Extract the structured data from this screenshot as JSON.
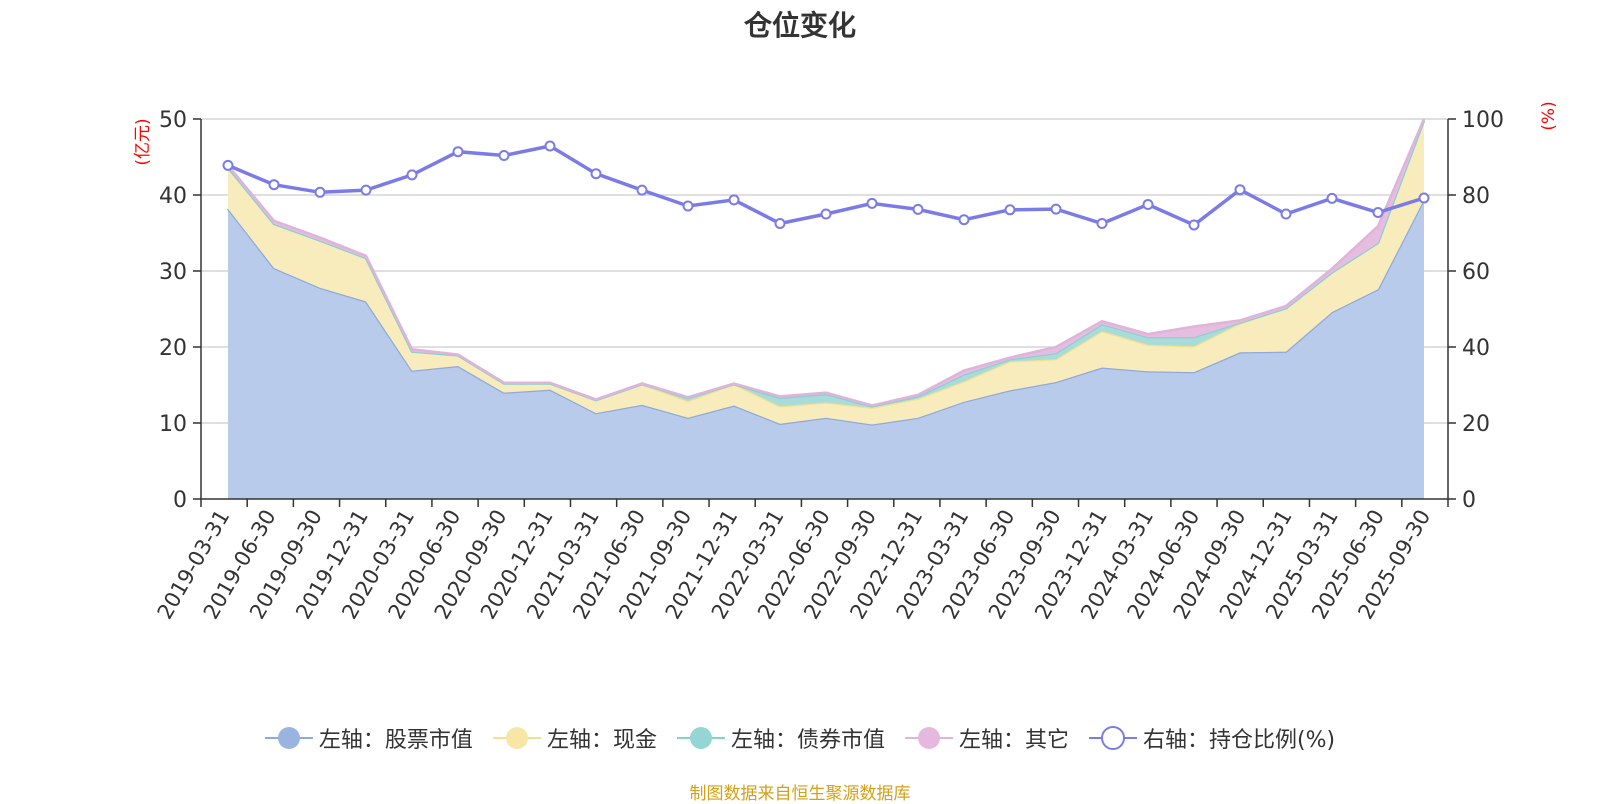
{
  "chart_data": {
    "type": "area",
    "title": "仓位变化",
    "source_note": "制图数据来自恒生聚源数据库",
    "left_axis": {
      "unit": "(亿元)",
      "min": 0,
      "max": 50,
      "ticks": [
        "0",
        "10",
        "20",
        "30",
        "40",
        "50"
      ]
    },
    "right_axis": {
      "unit": "(%)",
      "min": 0,
      "max": 100,
      "ticks": [
        "0",
        "20",
        "40",
        "60",
        "80",
        "100"
      ]
    },
    "x_labels_shown": [
      "2019-03-31",
      "2019-06-30",
      "2019-09-30",
      "2019-12-31",
      "2020-03-31",
      "2020-06-30",
      "2020-09-30",
      "2020-12-31",
      "2021-03-31",
      "2021-06-30",
      "2021-09-30",
      "2021-12-31",
      "2022-03-31",
      "2022-06-30",
      "2022-09-30",
      "2022-12-31",
      "2023-03-31",
      "2023-06-30",
      "2023-09-30",
      "2023-12-31",
      "2024-03-31",
      "2024-06-30",
      "2024-09-30",
      "2024-12-31",
      "2025-03-31",
      "2025-06-30",
      "2025-09-30"
    ],
    "points": 27,
    "series": [
      {
        "name": "左轴：股票市值",
        "axis": "left",
        "type": "area",
        "color": "#8fa9dc",
        "fill": "#b8cbea",
        "values": [
          38.2,
          30.4,
          27.8,
          26.0,
          16.9,
          17.5,
          14.0,
          14.4,
          11.3,
          12.4,
          10.7,
          12.3,
          9.9,
          10.7,
          9.8,
          10.7,
          12.8,
          14.3,
          15.4,
          17.3,
          16.8,
          16.7,
          19.3,
          19.4,
          24.6,
          27.6,
          39.4
        ]
      },
      {
        "name": "左轴：现金",
        "axis": "left",
        "type": "area",
        "color": "#f3e08f",
        "fill": "#f9ecbc",
        "values": [
          5.4,
          5.8,
          6.2,
          5.7,
          2.5,
          1.4,
          1.2,
          0.8,
          1.7,
          2.7,
          2.2,
          2.8,
          2.3,
          2.0,
          2.2,
          2.5,
          2.7,
          3.8,
          3.0,
          4.8,
          3.5,
          3.4,
          3.8,
          5.7,
          5.2,
          6.1,
          10.4
        ]
      },
      {
        "name": "左轴：债券市值",
        "axis": "left",
        "type": "area",
        "color": "#89d0d2",
        "fill": "#a9dbd9",
        "values": [
          0,
          0,
          0,
          0,
          0,
          0,
          0,
          0,
          0,
          0,
          0.4,
          0,
          1.1,
          1.1,
          0.2,
          0.3,
          0.9,
          0.3,
          0.8,
          0.9,
          1.0,
          1.2,
          0.1,
          0,
          0,
          0,
          0
        ]
      },
      {
        "name": "左轴：其它",
        "axis": "left",
        "type": "area",
        "color": "#e0b3db",
        "fill": "#e6bddf",
        "values": [
          0.3,
          0.4,
          0.4,
          0.3,
          0.3,
          0.1,
          0.1,
          0.1,
          0.1,
          0.1,
          0.1,
          0.1,
          0.2,
          0.2,
          0.1,
          0.2,
          0.5,
          0.2,
          0.8,
          0.4,
          0.4,
          1.4,
          0.3,
          0.3,
          0.5,
          2.2,
          0.2
        ]
      },
      {
        "name": "右轴：持仓比例(%)",
        "axis": "right",
        "type": "line",
        "color": "#7b7be8",
        "values": [
          87.8,
          82.7,
          80.7,
          81.3,
          85.3,
          91.4,
          90.4,
          92.9,
          85.6,
          81.3,
          77.1,
          78.7,
          72.5,
          75.0,
          77.8,
          76.2,
          73.5,
          76.1,
          76.3,
          72.5,
          77.5,
          72.1,
          81.4,
          75.0,
          79.1,
          75.4,
          79.2
        ]
      }
    ]
  }
}
